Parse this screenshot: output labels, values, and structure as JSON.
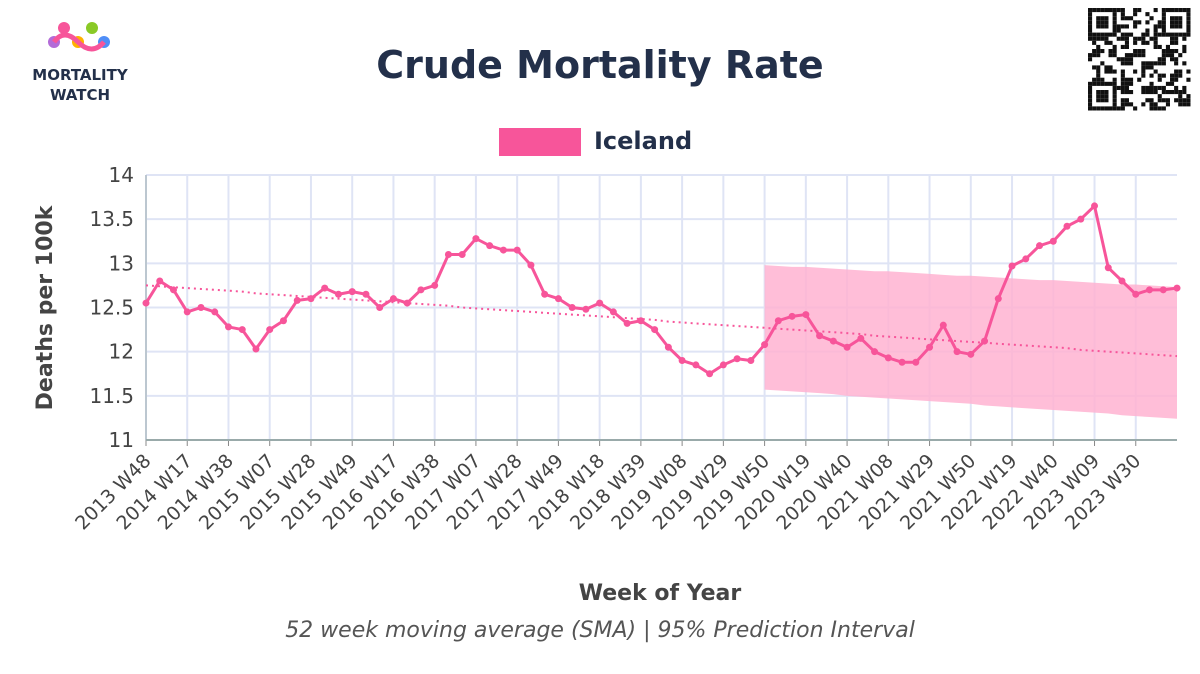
{
  "logo": {
    "line1": "MORTALITY",
    "line2": "WATCH"
  },
  "chart_data": {
    "type": "line",
    "title": "Crude Mortality Rate",
    "subtitle": "52 week moving average (SMA) | 95% Prediction Interval",
    "x_label": "Week of Year",
    "y_label": "Deaths per 100k",
    "categories": [
      "2013 W48",
      null,
      null,
      "2014 W17",
      null,
      null,
      "2014 W38",
      null,
      null,
      "2015 W07",
      null,
      null,
      "2015 W28",
      null,
      null,
      "2015 W49",
      null,
      null,
      "2016 W17",
      null,
      null,
      "2016 W38",
      null,
      null,
      "2017 W07",
      null,
      null,
      "2017 W28",
      null,
      null,
      "2017 W49",
      null,
      null,
      "2018 W18",
      null,
      null,
      "2018 W39",
      null,
      null,
      "2019 W08",
      null,
      null,
      "2019 W29",
      null,
      null,
      "2019 W50",
      null,
      null,
      "2020 W19",
      null,
      null,
      "2020 W40",
      null,
      null,
      "2021 W08",
      null,
      null,
      "2021 W29",
      null,
      null,
      "2021 W50",
      null,
      null,
      "2022 W19",
      null,
      null,
      "2022 W40",
      null,
      null,
      "2023 W09",
      null,
      null,
      "2023 W30",
      null,
      null,
      null
    ],
    "series": [
      {
        "name": "Iceland",
        "color": "#f7559a",
        "values": [
          12.55,
          12.8,
          12.7,
          12.45,
          12.5,
          12.45,
          12.28,
          12.25,
          12.03,
          12.25,
          12.35,
          12.58,
          12.6,
          12.72,
          12.65,
          12.68,
          12.65,
          12.5,
          12.6,
          12.55,
          12.7,
          12.75,
          13.1,
          13.1,
          13.28,
          13.2,
          13.15,
          13.15,
          12.98,
          12.65,
          12.6,
          12.5,
          12.48,
          12.55,
          12.45,
          12.32,
          12.35,
          12.25,
          12.05,
          11.9,
          11.85,
          11.75,
          11.85,
          11.92,
          11.9,
          12.08,
          12.35,
          12.4,
          12.42,
          12.18,
          12.12,
          12.05,
          12.15,
          12.0,
          11.93,
          11.88,
          11.88,
          12.05,
          12.3,
          12.0,
          11.97,
          12.12,
          12.6,
          12.97,
          13.05,
          13.2,
          13.25,
          13.42,
          13.5,
          13.65,
          12.95,
          12.8,
          12.65,
          12.7,
          12.7,
          12.72
        ]
      }
    ],
    "trend": [
      12.75,
      12.74,
      12.73,
      12.72,
      12.71,
      12.7,
      12.69,
      12.68,
      12.66,
      12.65,
      12.64,
      12.63,
      12.62,
      12.61,
      12.6,
      12.59,
      12.58,
      12.57,
      12.56,
      12.55,
      12.54,
      12.53,
      12.52,
      12.5,
      12.49,
      12.48,
      12.47,
      12.46,
      12.45,
      12.44,
      12.43,
      12.42,
      12.41,
      12.4,
      12.39,
      12.38,
      12.37,
      12.36,
      12.34,
      12.33,
      12.32,
      12.31,
      12.3,
      12.29,
      12.28,
      12.27,
      12.26,
      12.25,
      12.24,
      12.23,
      12.22,
      12.21,
      12.2,
      12.18,
      12.17,
      12.16,
      12.15,
      12.14,
      12.13,
      12.12,
      12.11,
      12.1,
      12.09,
      12.08,
      12.07,
      12.06,
      12.05,
      12.04,
      12.02,
      12.01,
      12.0,
      11.99,
      11.98,
      11.97,
      11.96,
      11.95
    ],
    "pi_upper": [
      null,
      null,
      null,
      null,
      null,
      null,
      null,
      null,
      null,
      null,
      null,
      null,
      null,
      null,
      null,
      null,
      null,
      null,
      null,
      null,
      null,
      null,
      null,
      null,
      null,
      null,
      null,
      null,
      null,
      null,
      null,
      null,
      null,
      null,
      null,
      null,
      null,
      null,
      null,
      null,
      null,
      null,
      null,
      null,
      null,
      12.98,
      12.97,
      12.96,
      12.96,
      12.95,
      12.94,
      12.93,
      12.92,
      12.91,
      12.91,
      12.9,
      12.89,
      12.88,
      12.87,
      12.86,
      12.86,
      12.85,
      12.84,
      12.83,
      12.82,
      12.81,
      12.81,
      12.8,
      12.79,
      12.78,
      12.77,
      12.76,
      12.76,
      12.75,
      12.74,
      12.73
    ],
    "pi_lower": [
      null,
      null,
      null,
      null,
      null,
      null,
      null,
      null,
      null,
      null,
      null,
      null,
      null,
      null,
      null,
      null,
      null,
      null,
      null,
      null,
      null,
      null,
      null,
      null,
      null,
      null,
      null,
      null,
      null,
      null,
      null,
      null,
      null,
      null,
      null,
      null,
      null,
      null,
      null,
      null,
      null,
      null,
      null,
      null,
      null,
      11.57,
      11.56,
      11.55,
      11.54,
      11.53,
      11.52,
      11.5,
      11.49,
      11.48,
      11.47,
      11.46,
      11.45,
      11.44,
      11.43,
      11.42,
      11.41,
      11.39,
      11.38,
      11.37,
      11.36,
      11.35,
      11.34,
      11.33,
      11.32,
      11.31,
      11.3,
      11.28,
      11.27,
      11.26,
      11.25,
      11.24
    ],
    "band_color": "#ffb3d1",
    "ylim": [
      11,
      14
    ],
    "yticks": [
      11,
      11.5,
      12,
      12.5,
      13,
      13.5,
      14
    ],
    "grid": true
  }
}
